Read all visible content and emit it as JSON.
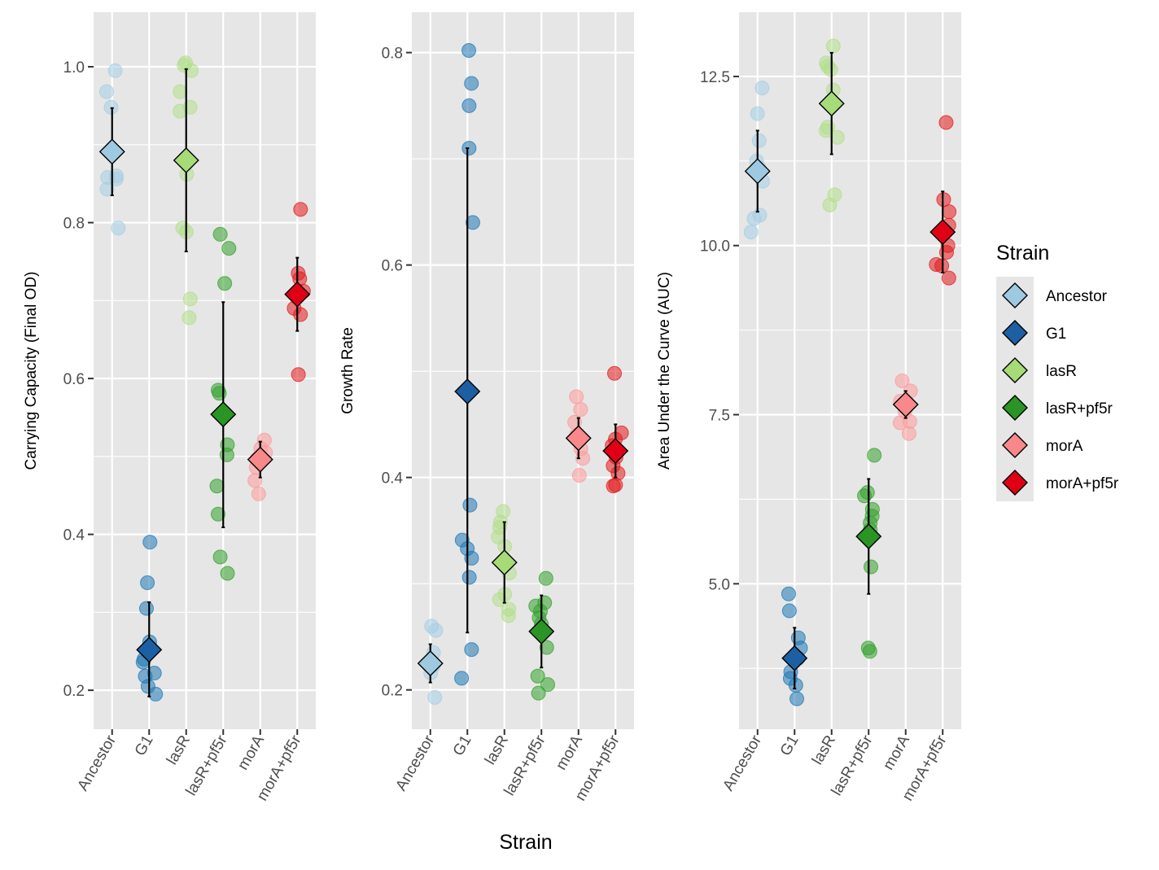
{
  "colors": {
    "Ancestor": "#a6cee3",
    "G1": "#1f78b4",
    "lasR": "#b2df8a",
    "lasR+pf5r": "#33a02c",
    "morA": "#fb9a99",
    "morA+pf5r": "#e31a1c",
    "Ancestor_mean": "#9ecae1",
    "G1_mean": "#1c5fa3",
    "lasR_mean": "#a6db78",
    "lasR+pf5r_mean": "#2a9425",
    "morA_mean": "#f8888a",
    "morA+pf5r_mean": "#e00016",
    "panel_bg": "#e6e6e6",
    "grid": "#ffffff"
  },
  "xlabel": "Strain",
  "legend": {
    "title": "Strain",
    "position": "right",
    "items": [
      "Ancestor",
      "G1",
      "lasR",
      "lasR+pf5r",
      "morA",
      "morA+pf5r"
    ]
  },
  "chart_data": [
    {
      "type": "scatter",
      "ylabel": "Carrying Capacity (Final OD)",
      "categories": [
        "Ancestor",
        "G1",
        "lasR",
        "lasR+pf5r",
        "morA",
        "morA+pf5r"
      ],
      "ylim": [
        0.15,
        1.07
      ],
      "yticks": [
        0.2,
        0.4,
        0.6,
        0.8,
        1.0
      ],
      "ytick_labels": [
        "0.2",
        "0.4",
        "0.6",
        "0.8",
        "1.0"
      ],
      "grid": true,
      "points": [
        [
          0.995,
          0.968,
          0.948,
          0.86,
          0.858,
          0.856,
          0.843,
          0.793
        ],
        [
          0.39,
          0.338,
          0.305,
          0.262,
          0.24,
          0.236,
          0.222,
          0.218,
          0.205,
          0.195
        ],
        [
          1.005,
          1.002,
          0.995,
          0.968,
          0.948,
          0.943,
          0.862,
          0.793,
          0.788,
          0.702,
          0.678
        ],
        [
          0.785,
          0.767,
          0.722,
          0.585,
          0.581,
          0.515,
          0.502,
          0.462,
          0.426,
          0.371,
          0.35
        ],
        [
          0.521,
          0.51,
          0.505,
          0.497,
          0.486,
          0.469,
          0.452
        ],
        [
          0.817,
          0.735,
          0.728,
          0.712,
          0.708,
          0.69,
          0.682,
          0.605
        ]
      ],
      "means": [
        0.891,
        0.252,
        0.88,
        0.554,
        0.496,
        0.708
      ],
      "err_low": [
        0.835,
        0.192,
        0.763,
        0.409,
        0.473,
        0.661
      ],
      "err_high": [
        0.947,
        0.313,
        0.997,
        0.698,
        0.519,
        0.755
      ]
    },
    {
      "type": "scatter",
      "ylabel": "Growth Rate",
      "categories": [
        "Ancestor",
        "G1",
        "lasR",
        "lasR+pf5r",
        "morA",
        "morA+pf5r"
      ],
      "ylim": [
        0.163,
        0.838
      ],
      "yticks": [
        0.2,
        0.4,
        0.6,
        0.8
      ],
      "ytick_labels": [
        "0.2",
        "0.4",
        "0.6",
        "0.8"
      ],
      "grid": true,
      "points": [
        [
          0.26,
          0.256,
          0.235,
          0.223,
          0.216,
          0.193
        ],
        [
          0.802,
          0.771,
          0.75,
          0.71,
          0.64,
          0.374,
          0.341,
          0.333,
          0.324,
          0.306,
          0.238,
          0.211
        ],
        [
          0.368,
          0.358,
          0.353,
          0.344,
          0.335,
          0.31,
          0.29,
          0.285,
          0.276,
          0.27
        ],
        [
          0.305,
          0.282,
          0.279,
          0.274,
          0.268,
          0.262,
          0.24,
          0.213,
          0.205,
          0.197
        ],
        [
          0.476,
          0.464,
          0.452,
          0.44,
          0.427,
          0.418,
          0.402
        ],
        [
          0.498,
          0.442,
          0.436,
          0.43,
          0.419,
          0.411,
          0.404,
          0.393,
          0.392
        ]
      ],
      "means": [
        0.225,
        0.481,
        0.32,
        0.255,
        0.437,
        0.425
      ],
      "err_low": [
        0.207,
        0.254,
        0.282,
        0.221,
        0.418,
        0.4
      ],
      "err_high": [
        0.243,
        0.71,
        0.358,
        0.289,
        0.456,
        0.45
      ]
    },
    {
      "type": "scatter",
      "ylabel": "Area Under the Curve (AUC)",
      "categories": [
        "Ancestor",
        "G1",
        "lasR",
        "lasR+pf5r",
        "morA",
        "morA+pf5r"
      ],
      "ylim": [
        2.85,
        13.45
      ],
      "yticks": [
        5.0,
        7.5,
        10.0,
        12.5
      ],
      "ytick_labels": [
        "5.0",
        "7.5",
        "10.0",
        "12.5"
      ],
      "grid": true,
      "points": [
        [
          12.33,
          11.95,
          11.55,
          11.25,
          11.15,
          10.95,
          10.45,
          10.4,
          10.2
        ],
        [
          4.85,
          4.6,
          4.2,
          4.05,
          3.9,
          3.7,
          3.6,
          3.5,
          3.3
        ],
        [
          12.95,
          12.7,
          12.65,
          12.6,
          12.3,
          11.75,
          11.7,
          11.6,
          10.75,
          10.6
        ],
        [
          6.9,
          6.35,
          6.3,
          6.1,
          6.0,
          5.9,
          5.8,
          5.25,
          4.05,
          4.0
        ],
        [
          8.0,
          7.85,
          7.7,
          7.55,
          7.4,
          7.38,
          7.22
        ],
        [
          11.82,
          10.68,
          10.5,
          10.3,
          10.2,
          10.0,
          9.9,
          9.72,
          9.7,
          9.52
        ]
      ],
      "means": [
        11.1,
        3.9,
        12.1,
        5.7,
        7.65,
        10.2
      ],
      "err_low": [
        10.5,
        3.45,
        11.35,
        4.85,
        7.45,
        9.6
      ],
      "err_high": [
        11.7,
        4.35,
        12.85,
        6.55,
        7.85,
        10.8
      ]
    }
  ]
}
